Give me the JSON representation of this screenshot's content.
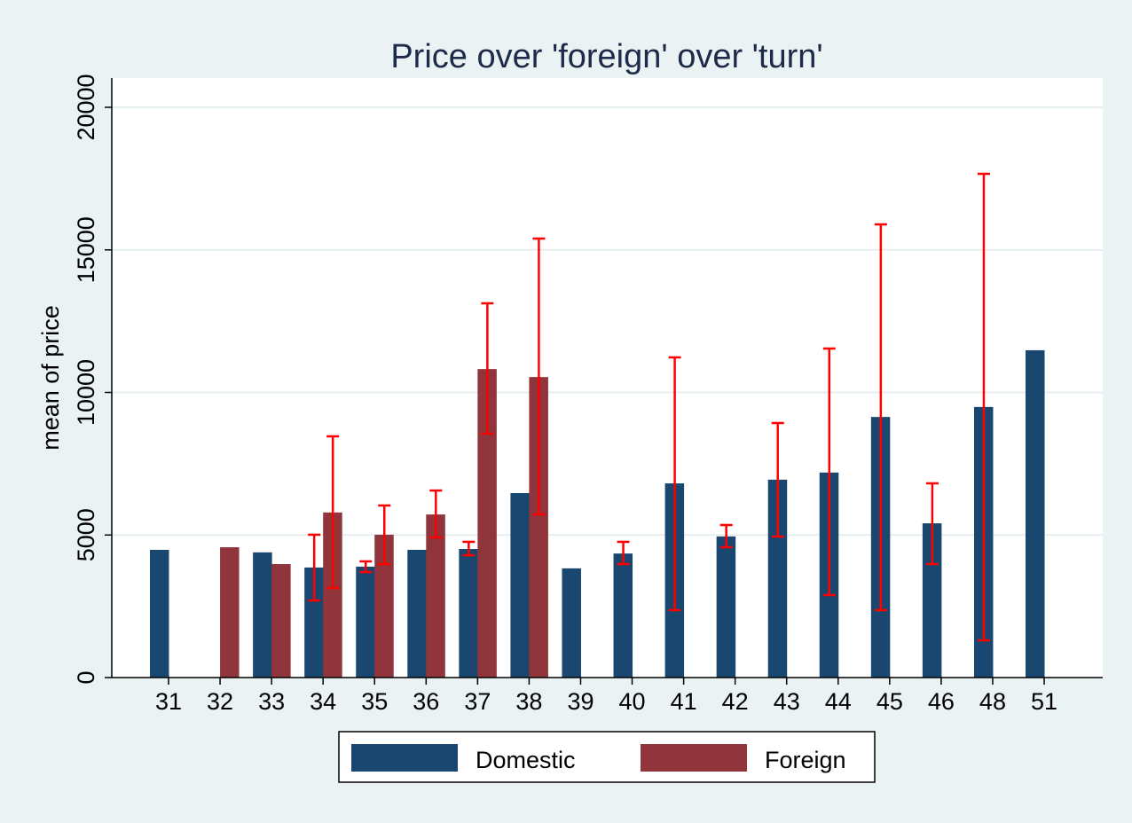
{
  "chart_data": {
    "type": "bar",
    "title": "Price over 'foreign' over 'turn'",
    "xlabel": "",
    "ylabel": "mean of price",
    "ylim": [
      0,
      20000
    ],
    "yticks": [
      0,
      5000,
      10000,
      15000,
      20000
    ],
    "grid": true,
    "legend_position": "bottom",
    "categories": [
      "31",
      "32",
      "33",
      "34",
      "35",
      "36",
      "37",
      "38",
      "39",
      "40",
      "41",
      "42",
      "43",
      "44",
      "45",
      "46",
      "48",
      "51"
    ],
    "series": [
      {
        "name": "Domestic",
        "color": "#1a476f",
        "values": [
          4479,
          null,
          4390,
          3860,
          3890,
          4480,
          4510,
          6470,
          3830,
          4350,
          6810,
          4950,
          6940,
          7190,
          9140,
          5410,
          9490,
          11480
        ],
        "ci_low": [
          null,
          null,
          null,
          2706,
          3700,
          null,
          4290,
          null,
          null,
          3980,
          2364,
          4572,
          4945,
          2893,
          2364,
          3981,
          1306,
          null
        ],
        "ci_high": [
          null,
          null,
          null,
          5010,
          4075,
          null,
          4760,
          null,
          null,
          4760,
          11229,
          5350,
          8927,
          11540,
          15894,
          6812,
          17667,
          null
        ]
      },
      {
        "name": "Foreign",
        "color": "#90353b",
        "values": [
          null,
          4570,
          3980,
          5790,
          5010,
          5720,
          10820,
          10540,
          null,
          null,
          null,
          null,
          null,
          null,
          null,
          null,
          null,
          null
        ],
        "ci_low": [
          null,
          null,
          null,
          3140,
          3980,
          4915,
          8553,
          5723,
          null,
          null,
          null,
          null,
          null,
          null,
          null,
          null,
          null,
          null
        ],
        "ci_high": [
          null,
          null,
          null,
          8460,
          6035,
          6560,
          13126,
          15397,
          null,
          null,
          null,
          null,
          null,
          null,
          null,
          null,
          null,
          null
        ]
      }
    ],
    "ci_color": "#ff0000"
  }
}
